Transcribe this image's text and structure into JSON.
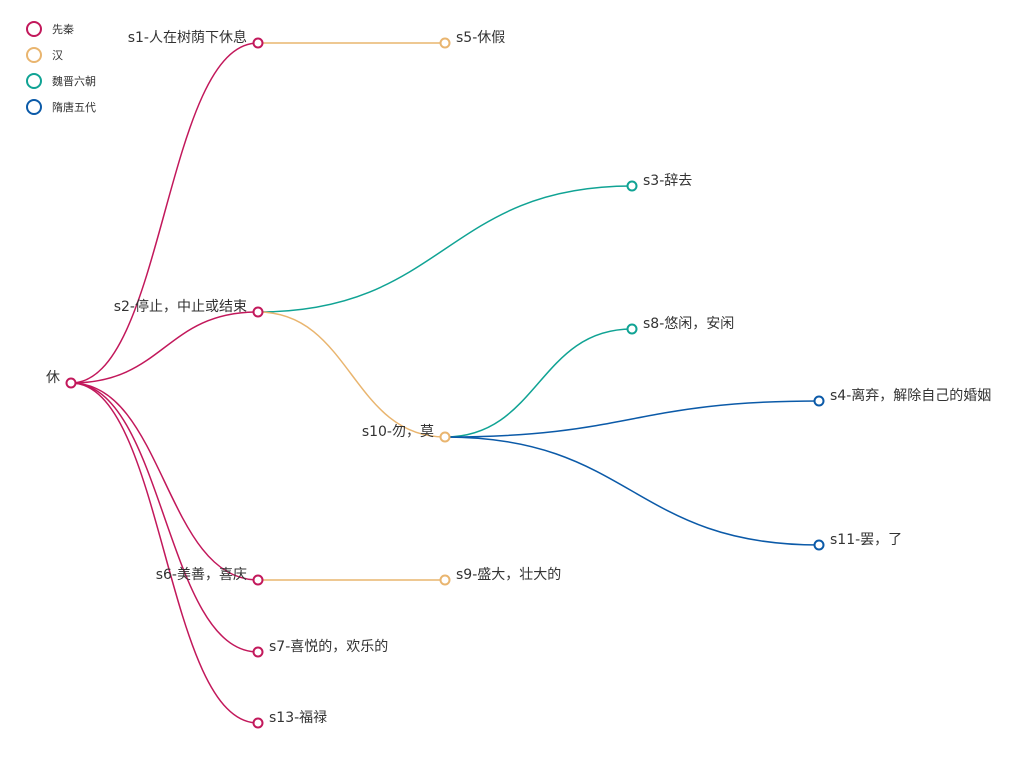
{
  "legend": {
    "items": [
      {
        "label": "先秦",
        "color": "#c2185b"
      },
      {
        "label": "汉",
        "color": "#e9b56f"
      },
      {
        "label": "魏晋六朝",
        "color": "#10a394"
      },
      {
        "label": "隋唐五代",
        "color": "#0b5aa8"
      }
    ]
  },
  "tree": {
    "root": {
      "id": "root",
      "label": "休",
      "era": 0
    },
    "nodes": [
      {
        "id": "s1",
        "label": "s1-人在树荫下休息",
        "parent": "root",
        "era": 0
      },
      {
        "id": "s5",
        "label": "s5-休假",
        "parent": "s1",
        "era": 1
      },
      {
        "id": "s2",
        "label": "s2-停止，中止或结束",
        "parent": "root",
        "era": 0
      },
      {
        "id": "s3",
        "label": "s3-辞去",
        "parent": "s2",
        "era": 2
      },
      {
        "id": "s10",
        "label": "s10-勿，莫",
        "parent": "s2",
        "era": 1
      },
      {
        "id": "s8",
        "label": "s8-悠闲，安闲",
        "parent": "s10",
        "era": 2
      },
      {
        "id": "s4",
        "label": "s4-离弃，解除自己的婚姻",
        "parent": "s10",
        "era": 3
      },
      {
        "id": "s11",
        "label": "s11-罢，了",
        "parent": "s10",
        "era": 3
      },
      {
        "id": "s6",
        "label": "s6-美善，喜庆",
        "parent": "root",
        "era": 0
      },
      {
        "id": "s9",
        "label": "s9-盛大，壮大的",
        "parent": "s6",
        "era": 1
      },
      {
        "id": "s7",
        "label": "s7-喜悦的，欢乐的",
        "parent": "root",
        "era": 0
      },
      {
        "id": "s13",
        "label": "s13-福禄",
        "parent": "root",
        "era": 0
      }
    ]
  }
}
